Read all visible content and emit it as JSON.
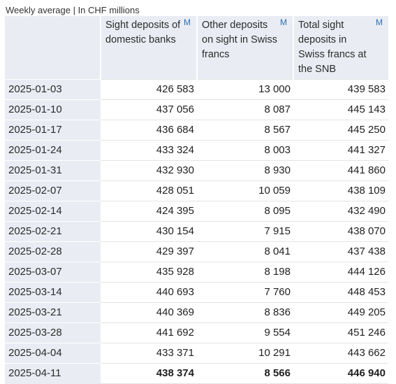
{
  "caption": "Weekly average | In CHF millions",
  "columns": [
    {
      "label": "Sight deposits of domestic banks",
      "link": "M"
    },
    {
      "label": "Other deposits on sight in Swiss francs",
      "link": "M"
    },
    {
      "label": "Total sight deposits in Swiss francs at the SNB",
      "link": "M"
    }
  ],
  "rows": [
    {
      "date": "2025-01-03",
      "values": [
        "426 583",
        "13 000",
        "439 583"
      ]
    },
    {
      "date": "2025-01-10",
      "values": [
        "437 056",
        "8 087",
        "445 143"
      ]
    },
    {
      "date": "2025-01-17",
      "values": [
        "436 684",
        "8 567",
        "445 250"
      ]
    },
    {
      "date": "2025-01-24",
      "values": [
        "433 324",
        "8 003",
        "441 327"
      ]
    },
    {
      "date": "2025-01-31",
      "values": [
        "432 930",
        "8 930",
        "441 860"
      ]
    },
    {
      "date": "2025-02-07",
      "values": [
        "428 051",
        "10 059",
        "438 109"
      ]
    },
    {
      "date": "2025-02-14",
      "values": [
        "424 395",
        "8 095",
        "432 490"
      ]
    },
    {
      "date": "2025-02-21",
      "values": [
        "430 154",
        "7 915",
        "438 070"
      ]
    },
    {
      "date": "2025-02-28",
      "values": [
        "429 397",
        "8 041",
        "437 438"
      ]
    },
    {
      "date": "2025-03-07",
      "values": [
        "435 928",
        "8 198",
        "444 126"
      ]
    },
    {
      "date": "2025-03-14",
      "values": [
        "440 693",
        "7 760",
        "448 453"
      ]
    },
    {
      "date": "2025-03-21",
      "values": [
        "440 369",
        "8 836",
        "449 205"
      ]
    },
    {
      "date": "2025-03-28",
      "values": [
        "441 692",
        "9 554",
        "451 246"
      ]
    },
    {
      "date": "2025-04-04",
      "values": [
        "433 371",
        "10 291",
        "443 662"
      ]
    },
    {
      "date": "2025-04-11",
      "values": [
        "438 374",
        "8 566",
        "446 940"
      ]
    }
  ]
}
